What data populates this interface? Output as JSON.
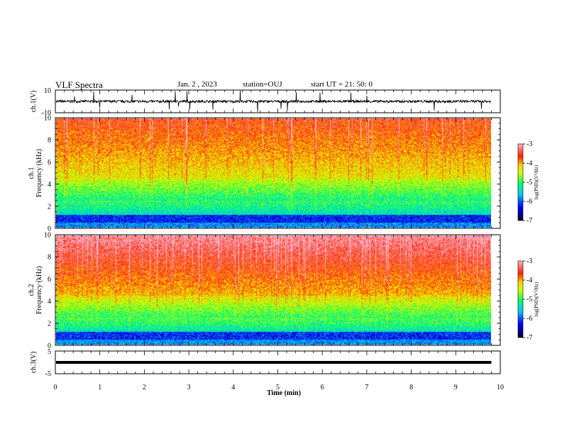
{
  "header": {
    "title": "VLF Spectra",
    "date": "Jan. 2 , 2023",
    "station": "station=OUJ",
    "start": "start UT =  21: 50: 0"
  },
  "chart_data": [
    {
      "type": "line",
      "name_label": "ch.1(V)",
      "ylabel": "ch.1(V)",
      "ylim": [
        -10,
        10
      ],
      "yticks": [
        "10",
        "-10"
      ],
      "baseline": 0,
      "xlim": [
        0,
        10
      ]
    },
    {
      "type": "heatmap",
      "ylabel": "ch.1\nFrequency (kHz)",
      "ylabel_line1": "ch.1",
      "ylabel_line2": "Frequency (kHz)",
      "ylim": [
        0,
        10
      ],
      "yticks": [
        "0",
        "2",
        "4",
        "6",
        "8",
        "10"
      ],
      "xlim": [
        0,
        10
      ],
      "colorbar": {
        "label": "log(PSD)(V²/Hz)",
        "range": [
          -7,
          -3
        ],
        "ticks": [
          "-3",
          "-4",
          "-5",
          "-6",
          "-7"
        ]
      }
    },
    {
      "type": "heatmap",
      "ylabel_line1": "ch.2",
      "ylabel_line2": "Frequency (kHz)",
      "ylim": [
        0,
        10
      ],
      "yticks": [
        "0",
        "2",
        "4",
        "6",
        "8",
        "10"
      ],
      "xlim": [
        0,
        10
      ],
      "colorbar": {
        "label": "log(PSD)(V²/Hz)",
        "range": [
          -7,
          -3
        ],
        "ticks": [
          "-3",
          "-4",
          "-5",
          "-6",
          "-7"
        ]
      }
    },
    {
      "type": "line",
      "ylabel": "ch.3(V)",
      "ylim": [
        -5,
        5
      ],
      "yticks": [
        "5",
        "-5"
      ],
      "xlim": [
        0,
        10
      ],
      "xticks": [
        "0",
        "1",
        "2",
        "3",
        "4",
        "5",
        "6",
        "7",
        "8",
        "9",
        "10"
      ],
      "xlabel": "Time (min)",
      "x_data_end": 9.8
    }
  ]
}
